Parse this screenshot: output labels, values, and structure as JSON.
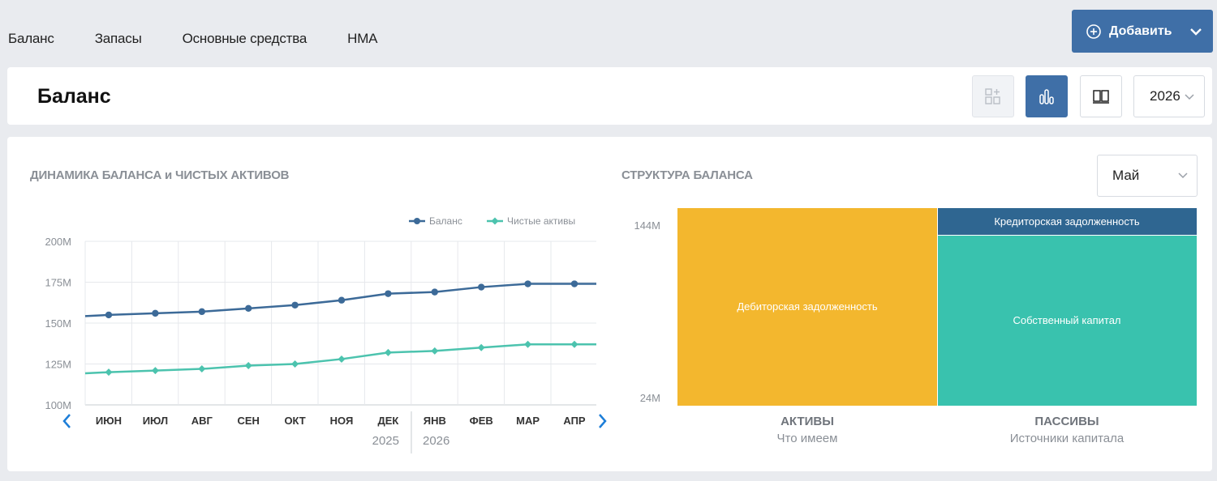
{
  "nav": {
    "tabs": [
      "Баланс",
      "Запасы",
      "Основные средства",
      "НМА"
    ]
  },
  "add_button": {
    "label": "Добавить",
    "icon": "plus-circle-icon"
  },
  "header": {
    "title": "Баланс",
    "tools": [
      {
        "icon": "dashboard-add-icon",
        "state": "disabled"
      },
      {
        "icon": "bar-chart-icon",
        "state": "active"
      },
      {
        "icon": "book-icon",
        "state": "normal"
      }
    ],
    "year": "2026"
  },
  "colors": {
    "accent": "#3f6fa7",
    "balance_line": "#3c6a98",
    "net_assets_line": "#4cc3ae",
    "receivables": "#f3b72e",
    "payables": "#2f6691",
    "equity": "#39c2ae"
  },
  "line_chart": {
    "title": "ДИНАМИКА БАЛАНСА и ЧИСТЫХ АКТИВОВ",
    "chart_data": {
      "type": "line",
      "categories": [
        "ИЮН",
        "ИЮЛ",
        "АВГ",
        "СЕН",
        "ОКТ",
        "НОЯ",
        "ДЕК",
        "ЯНВ",
        "ФЕВ",
        "МАР",
        "АПР"
      ],
      "year_labels": [
        "2025",
        "2026"
      ],
      "yticks": [
        "100M",
        "125M",
        "150M",
        "175M",
        "200M"
      ],
      "ylim": [
        100,
        200
      ],
      "series": [
        {
          "name": "Баланс",
          "values": [
            155,
            156,
            157,
            159,
            161,
            164,
            168,
            169,
            172,
            174,
            174
          ]
        },
        {
          "name": "Чистые активы",
          "values": [
            120,
            121,
            122,
            124,
            125,
            128,
            132,
            133,
            135,
            137,
            137
          ]
        }
      ],
      "legend": "top-right",
      "grid": true
    }
  },
  "structure_chart": {
    "title": "СТРУКТУРА БАЛАНСА",
    "month": "Май",
    "chart_data": {
      "type": "bar",
      "yticks": [
        "144M",
        "24M"
      ],
      "columns": [
        {
          "label": "АКТИВЫ",
          "sublabel": "Что имеем",
          "segments": [
            {
              "name": "Дебиторская задолженность"
            }
          ]
        },
        {
          "label": "ПАССИВЫ",
          "sublabel": "Источники капитала",
          "segments": [
            {
              "name": "Кредиторская задолженность"
            },
            {
              "name": "Собственный капитал"
            }
          ]
        }
      ]
    }
  }
}
